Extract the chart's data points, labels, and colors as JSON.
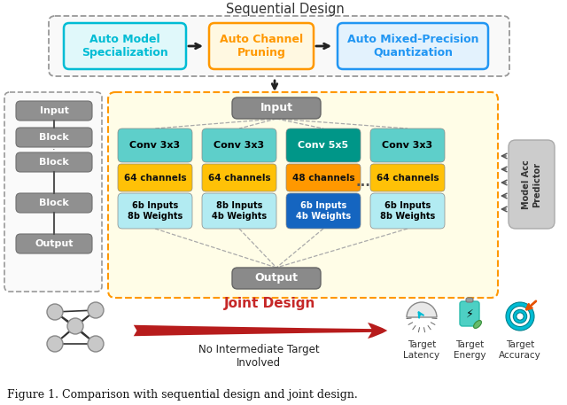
{
  "title": "Sequential Design",
  "fig_caption": "Figure 1. Comparison with sequential design and joint design.",
  "bg_color": "#ffffff",
  "step1_text": "Auto Model\nSpecialization",
  "step1_color": "#00bcd4",
  "step2_text": "Auto Channel\nPruning",
  "step2_color": "#ff9800",
  "step3_text": "Auto Mixed-Precision\nQuantization",
  "step3_color": "#2196f3",
  "left_boxes": [
    "Input",
    "Block",
    "Block",
    "Block",
    "Output"
  ],
  "conv_labels": [
    "Conv 3x3",
    "Conv 3x3",
    "Conv 5x5",
    "Conv 3x3"
  ],
  "ch_labels": [
    "64 channels",
    "64 channels",
    "48 channels",
    "64 channels"
  ],
  "bit_labels": [
    "6b Inputs\n8b Weights",
    "8b Inputs\n4b Weights",
    "6b Inputs\n4b Weights",
    "6b Inputs\n8b Weights"
  ],
  "top_colors": [
    "#5ecfca",
    "#5ecfca",
    "#009688",
    "#5ecfca"
  ],
  "top_text_colors": [
    "#000000",
    "#000000",
    "#ffffff",
    "#000000"
  ],
  "mid_colors": [
    "#ffc107",
    "#ffc107",
    "#ff9800",
    "#ffc107"
  ],
  "bot_colors": [
    "#b2ebf2",
    "#b2ebf2",
    "#1565c0",
    "#b2ebf2"
  ],
  "bot_text_colors": [
    "#000000",
    "#000000",
    "#ffffff",
    "#000000"
  ],
  "joint_text": "Joint Design",
  "joint_color": "#c62828",
  "no_intermediate_text": "No Intermediate Target\nInvolved",
  "icon_labels": [
    "Target\nLatency",
    "Target\nEnergy",
    "Target\nAccuracy"
  ]
}
